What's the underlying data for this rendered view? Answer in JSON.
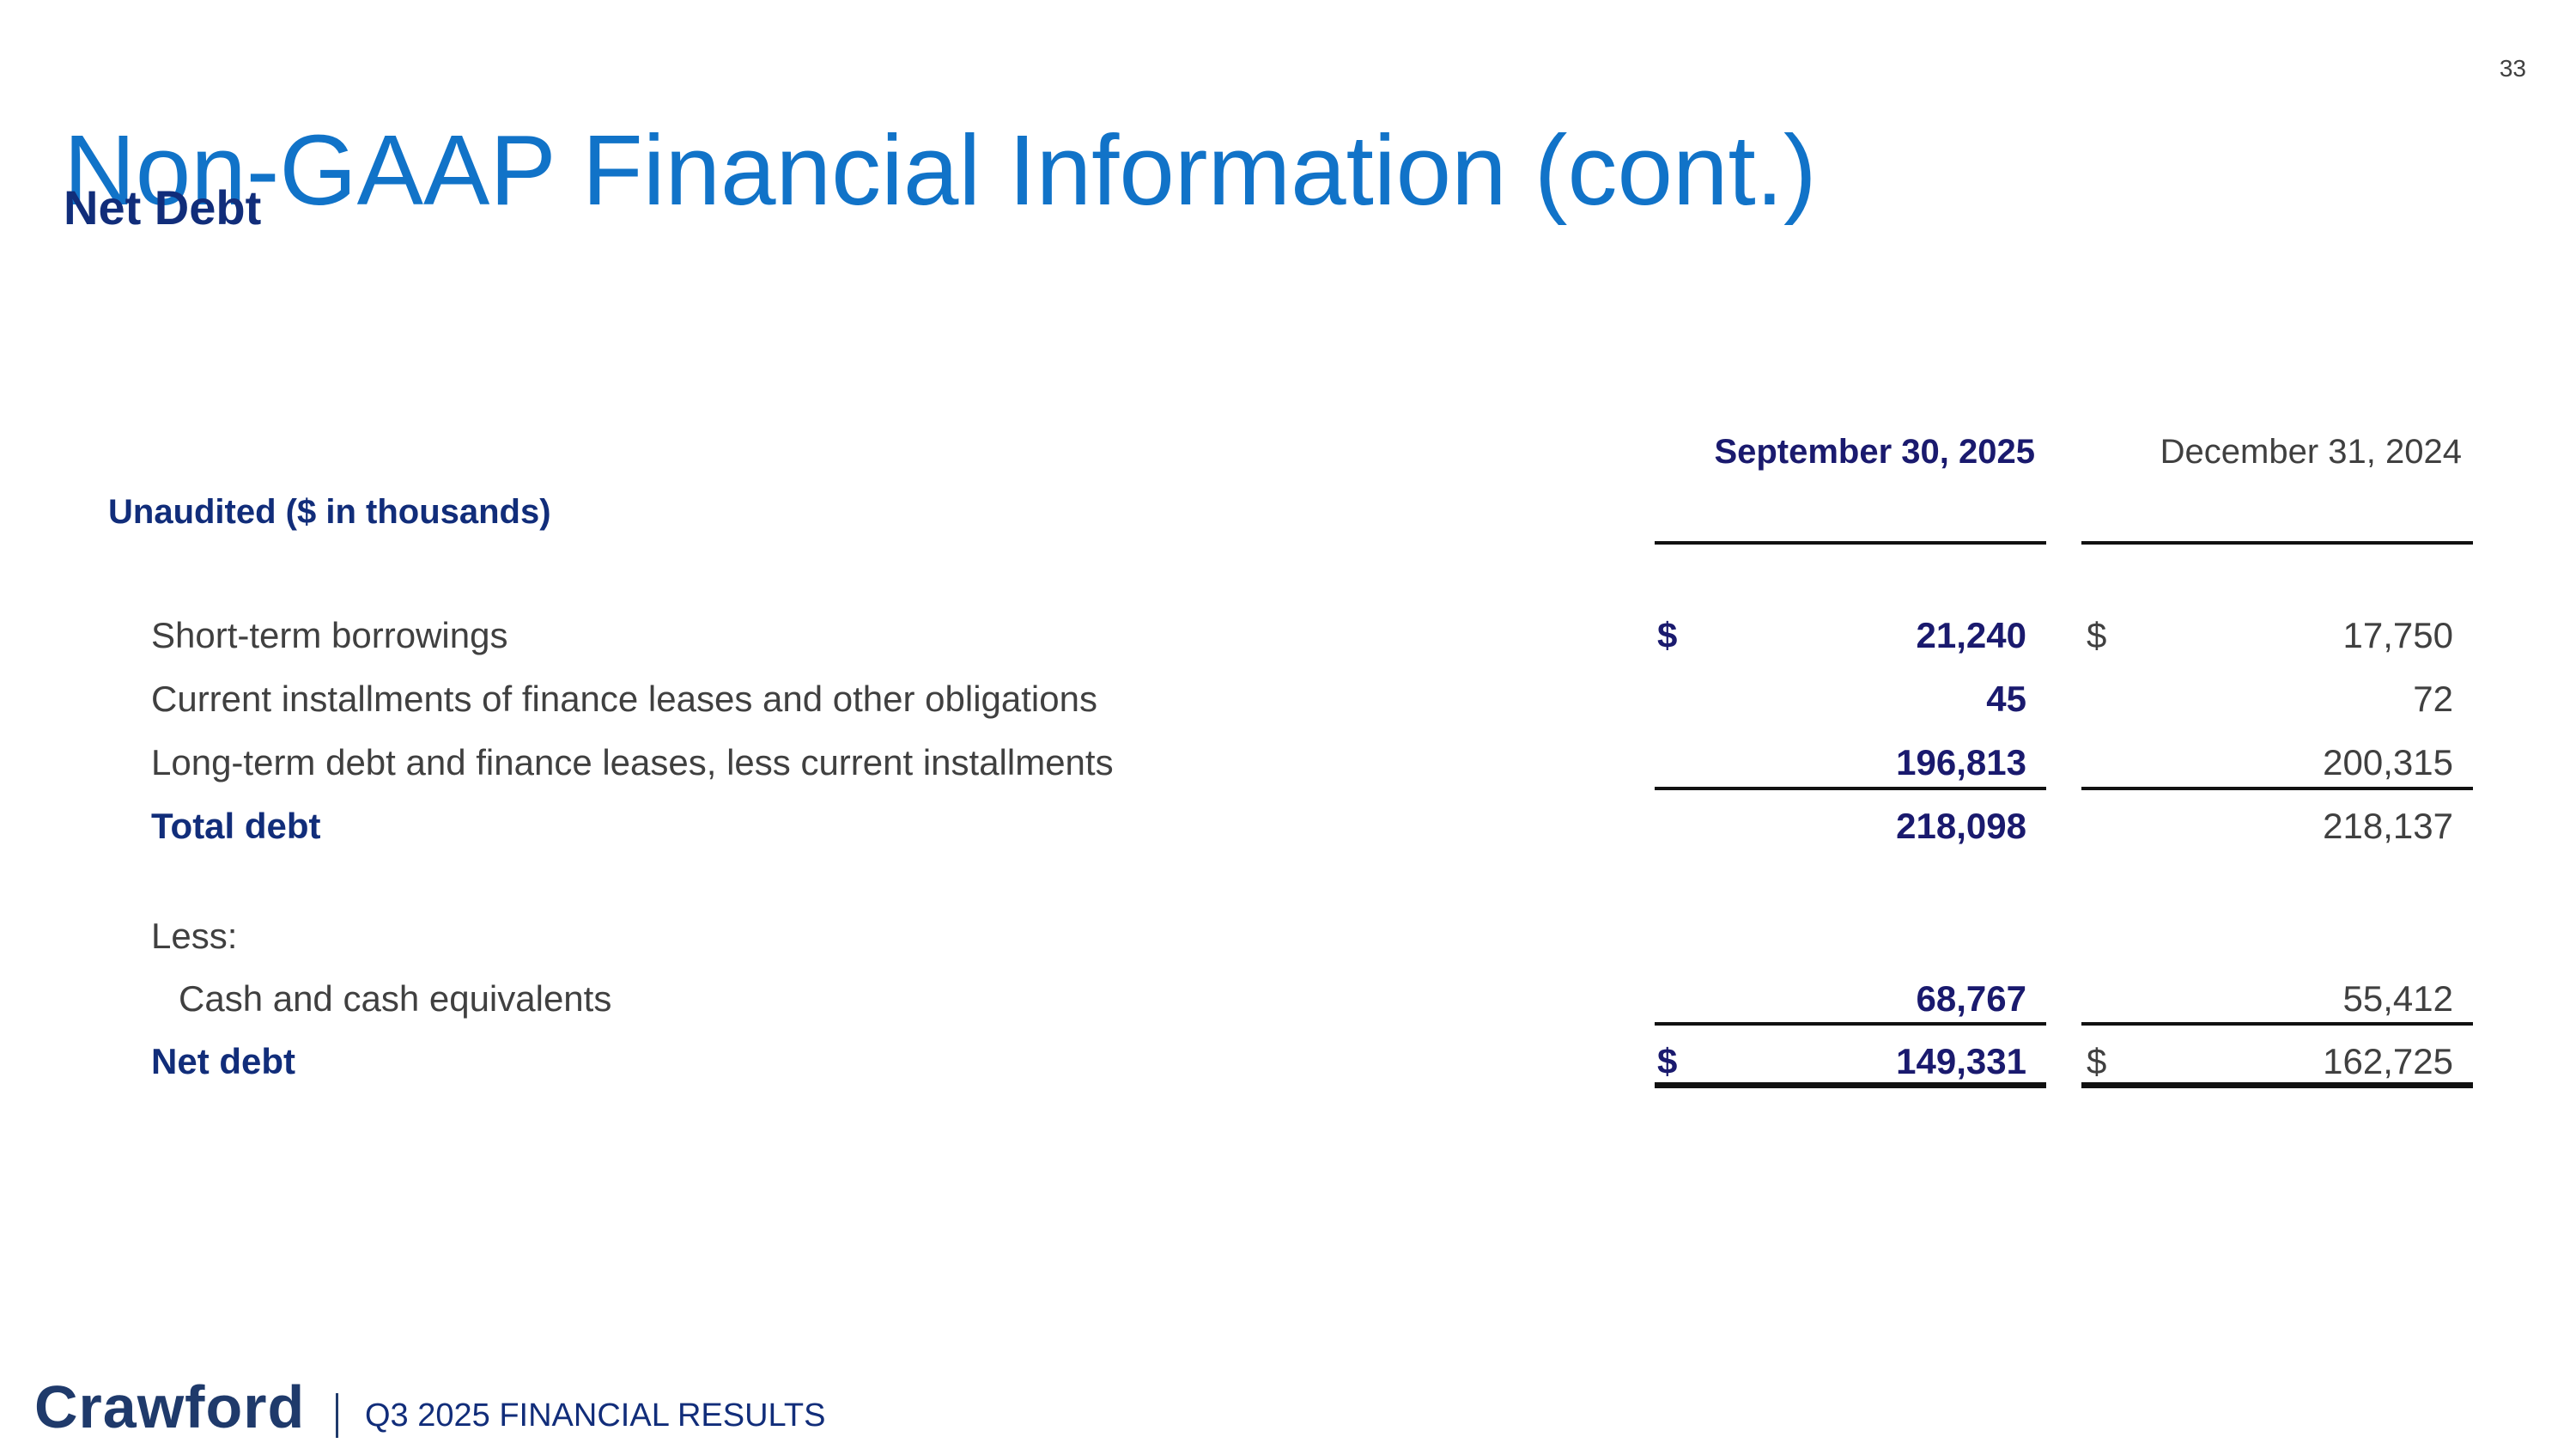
{
  "page_number": "33",
  "title": "Non-GAAP Financial Information (cont.)",
  "subtitle": "Net Debt",
  "table": {
    "caption": "Unaudited ($ in thousands)",
    "columns": [
      "September 30, 2025",
      "December 31, 2024"
    ],
    "rows": [
      {
        "label": "Short-term borrowings",
        "cur1": "$",
        "v1": "21,240",
        "cur2": "$",
        "v2": "17,750"
      },
      {
        "label": "Current installments of finance leases and other obligations",
        "v1": "45",
        "v2": "72"
      },
      {
        "label": "Long-term debt and finance leases, less current installments",
        "v1": "196,813",
        "v2": "200,315"
      },
      {
        "label": "Total debt",
        "v1": "218,098",
        "v2": "218,137"
      },
      {
        "label": "Less:"
      },
      {
        "label": "Cash and cash equivalents",
        "v1": "68,767",
        "v2": "55,412"
      },
      {
        "label": "Net debt",
        "cur1": "$",
        "v1": "149,331",
        "cur2": "$",
        "v2": "162,725"
      }
    ]
  },
  "footer": {
    "logo": "Crawford",
    "text": "Q3 2025 FINANCIAL RESULTS"
  }
}
